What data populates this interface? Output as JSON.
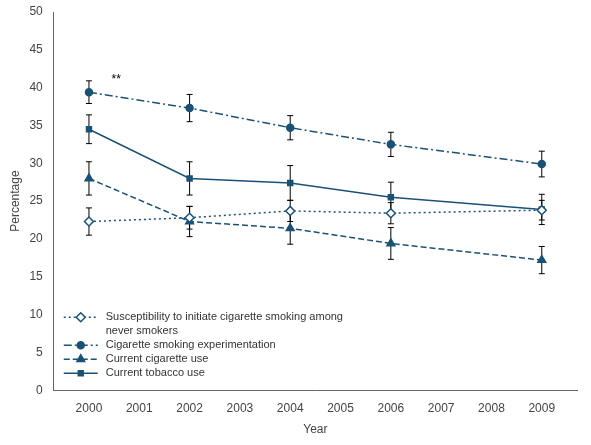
{
  "chart_data": {
    "type": "line",
    "xlabel": "Year",
    "ylabel": "Percentage",
    "x": [
      2000,
      2002,
      2004,
      2006,
      2009
    ],
    "series": [
      {
        "name": "Susceptibility to initiate cigarette smoking among\nnever smokers",
        "color": "#1a5276",
        "marker": "open_diamond",
        "line_style": "dotted",
        "values": [
          22.3,
          22.8,
          23.7,
          23.4,
          23.8
        ],
        "yerr_low": [
          1.8,
          1.5,
          1.4,
          1.4,
          1.3
        ],
        "yerr_high": [
          1.8,
          1.5,
          1.4,
          1.4,
          1.3
        ]
      },
      {
        "name": "Cigarette smoking experimentation",
        "color": "#1a5276",
        "marker": "circle",
        "line_style": "dashdot",
        "values": [
          39.4,
          37.3,
          34.7,
          32.5,
          29.9
        ],
        "yerr_low": [
          1.5,
          1.8,
          1.6,
          1.6,
          1.7
        ],
        "yerr_high": [
          1.5,
          1.8,
          1.6,
          1.6,
          1.7
        ]
      },
      {
        "name": "Current cigarette use",
        "color": "#1a5276",
        "marker": "triangle",
        "line_style": "dashed",
        "values": [
          28.0,
          22.3,
          21.4,
          19.4,
          17.2
        ],
        "yerr_low": [
          2.2,
          2.0,
          2.1,
          2.1,
          1.8
        ],
        "yerr_high": [
          2.2,
          2.0,
          2.1,
          2.1,
          1.8
        ]
      },
      {
        "name": "Current tobacco use",
        "color": "#1a5276",
        "marker": "square",
        "line_style": "solid",
        "values": [
          34.5,
          28.0,
          27.4,
          25.5,
          23.9
        ],
        "yerr_low": [
          1.9,
          2.2,
          2.3,
          2.0,
          2.0
        ],
        "yerr_high": [
          1.9,
          2.2,
          2.3,
          2.0,
          2.0
        ]
      }
    ],
    "xlim": [
      1999.3,
      2009.7
    ],
    "xticks": [
      2000,
      2001,
      2002,
      2003,
      2004,
      2005,
      2006,
      2007,
      2008,
      2009
    ],
    "ylim": [
      0,
      50
    ],
    "yticks": [
      0,
      5,
      10,
      15,
      20,
      25,
      30,
      35,
      40,
      45,
      50
    ],
    "grid": false,
    "legend": "lower left",
    "annotations": [
      {
        "text": "**",
        "x": 2000.45,
        "y": 40.2
      }
    ]
  }
}
